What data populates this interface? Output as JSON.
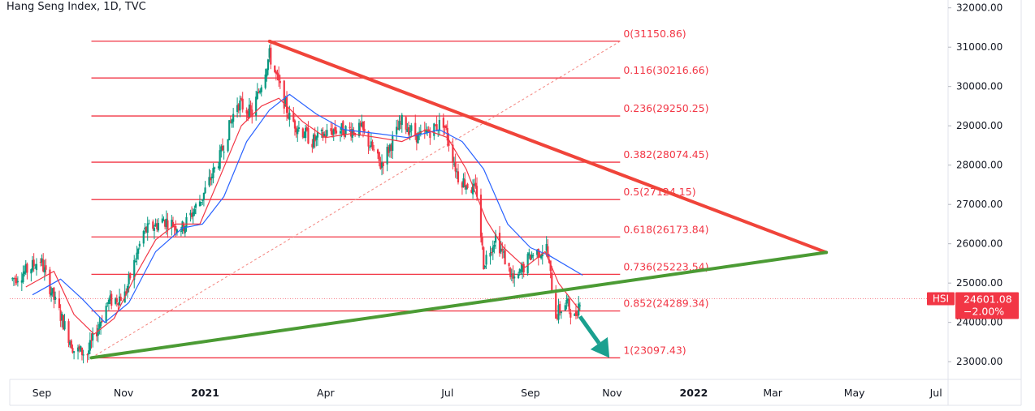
{
  "header": {
    "title": "Hang Seng Index, 1D, TVC"
  },
  "colors": {
    "fib_line": "#f23645",
    "up_candle": "#089981",
    "down_candle": "#f23645",
    "ma_fast": "#f23645",
    "ma_slow": "#2962ff",
    "downtrend_line": "#f0443a",
    "uptrend_line": "#4b9b34",
    "diagonal_dashed": "#f4837d",
    "arrow": "#1aa08f"
  },
  "chart_data": {
    "type": "candlestick",
    "title": "Hang Seng Index, 1D, TVC",
    "ylim": [
      22550,
      32200
    ],
    "y_ticks": [
      "32000.00",
      "31000.00",
      "30000.00",
      "29000.00",
      "28000.00",
      "27000.00",
      "26000.00",
      "25000.00",
      "24000.00",
      "23000.00"
    ],
    "y_tick_values": [
      32000,
      31000,
      30000,
      29000,
      28000,
      27000,
      26000,
      25000,
      24000,
      23000
    ],
    "x_ticks": [
      "Sep",
      "Nov",
      "2021",
      "Apr",
      "Jul",
      "Sep",
      "Nov",
      "2022",
      "Mar",
      "May",
      "Jul"
    ],
    "x_tick_dates": [
      "2020-09-01",
      "2020-11-01",
      "2021-01-01",
      "2021-04-01",
      "2021-07-01",
      "2021-09-01",
      "2021-11-01",
      "2022-01-01",
      "2022-03-01",
      "2022-05-01",
      "2022-07-01"
    ],
    "x_range": [
      "2020-08-08",
      "2022-07-10"
    ],
    "last_price": {
      "symbol": "HSI",
      "value": "24601.08",
      "change": "−2.00%",
      "price": 24601.08
    },
    "fib_retracement": {
      "start_date": "2020-10-08",
      "end_date": "2021-11-07",
      "levels": [
        {
          "label": "0(31150.86)",
          "price": 31150.86
        },
        {
          "label": "0.116(30216.66)",
          "price": 30216.66
        },
        {
          "label": "0.236(29250.25)",
          "price": 29250.25
        },
        {
          "label": "0.382(28074.45)",
          "price": 28074.45
        },
        {
          "label": "0.5(27124.15)",
          "price": 27124.15
        },
        {
          "label": "0.618(26173.84)",
          "price": 26173.84
        },
        {
          "label": "0.736(25223.54)",
          "price": 25223.54
        },
        {
          "label": "0.852(24289.34)",
          "price": 24289.34
        },
        {
          "label": "1(23097.43)",
          "price": 23097.43
        }
      ]
    },
    "trendlines": [
      {
        "name": "downtrend",
        "points": [
          [
            "2021-02-18",
            31150
          ],
          [
            "2022-04-10",
            25780
          ]
        ],
        "style": "solid"
      },
      {
        "name": "uptrend",
        "points": [
          [
            "2020-10-08",
            23100
          ],
          [
            "2022-04-10",
            25780
          ]
        ],
        "style": "solid"
      },
      {
        "name": "diagonal",
        "points": [
          [
            "2020-10-08",
            23100
          ],
          [
            "2021-11-07",
            31150
          ]
        ],
        "style": "dashed"
      }
    ],
    "arrow": {
      "from": [
        "2021-10-08",
        24150
      ],
      "to": [
        "2021-10-30",
        23100
      ]
    },
    "price_path": [
      [
        "2020-08-10",
        25100
      ],
      [
        "2020-08-20",
        25300
      ],
      [
        "2020-08-31",
        25600
      ],
      [
        "2020-09-10",
        24600
      ],
      [
        "2020-09-25",
        23300
      ],
      [
        "2020-10-05",
        23200
      ],
      [
        "2020-10-20",
        24500
      ],
      [
        "2020-11-02",
        24700
      ],
      [
        "2020-11-16",
        26300
      ],
      [
        "2020-12-01",
        26600
      ],
      [
        "2020-12-15",
        26400
      ],
      [
        "2020-12-30",
        27200
      ],
      [
        "2021-01-12",
        28200
      ],
      [
        "2021-01-25",
        29600
      ],
      [
        "2021-02-05",
        29300
      ],
      [
        "2021-02-18",
        30800
      ],
      [
        "2021-03-05",
        29200
      ],
      [
        "2021-03-22",
        28600
      ],
      [
        "2021-04-07",
        28900
      ],
      [
        "2021-04-28",
        28900
      ],
      [
        "2021-05-12",
        28000
      ],
      [
        "2021-05-28",
        29100
      ],
      [
        "2021-06-10",
        28700
      ],
      [
        "2021-06-28",
        29100
      ],
      [
        "2021-07-09",
        27700
      ],
      [
        "2021-07-23",
        27300
      ],
      [
        "2021-07-28",
        25500
      ],
      [
        "2021-08-06",
        26200
      ],
      [
        "2021-08-20",
        25000
      ],
      [
        "2021-09-01",
        25700
      ],
      [
        "2021-09-13",
        25900
      ],
      [
        "2021-09-20",
        24200
      ],
      [
        "2021-09-28",
        24500
      ],
      [
        "2021-10-04",
        24100
      ],
      [
        "2021-10-08",
        24601
      ]
    ],
    "ma_fast_path": [
      [
        "2020-08-20",
        24900
      ],
      [
        "2020-09-10",
        25300
      ],
      [
        "2020-09-25",
        24200
      ],
      [
        "2020-10-10",
        23700
      ],
      [
        "2020-10-25",
        24100
      ],
      [
        "2020-11-10",
        25200
      ],
      [
        "2020-11-25",
        26100
      ],
      [
        "2020-12-10",
        26500
      ],
      [
        "2020-12-28",
        26500
      ],
      [
        "2021-01-12",
        27700
      ],
      [
        "2021-01-28",
        29000
      ],
      [
        "2021-02-12",
        29500
      ],
      [
        "2021-02-25",
        29700
      ],
      [
        "2021-03-15",
        29100
      ],
      [
        "2021-04-01",
        28700
      ],
      [
        "2021-04-20",
        28800
      ],
      [
        "2021-05-10",
        28700
      ],
      [
        "2021-05-28",
        28600
      ],
      [
        "2021-06-15",
        28900
      ],
      [
        "2021-07-01",
        28700
      ],
      [
        "2021-07-15",
        27900
      ],
      [
        "2021-07-30",
        26600
      ],
      [
        "2021-08-12",
        25900
      ],
      [
        "2021-08-28",
        25400
      ],
      [
        "2021-09-12",
        25800
      ],
      [
        "2021-09-22",
        25000
      ],
      [
        "2021-10-08",
        24300
      ]
    ],
    "ma_slow_path": [
      [
        "2020-08-25",
        24700
      ],
      [
        "2020-09-15",
        25100
      ],
      [
        "2020-10-01",
        24600
      ],
      [
        "2020-10-18",
        24000
      ],
      [
        "2020-11-05",
        24500
      ],
      [
        "2020-11-25",
        25800
      ],
      [
        "2020-12-15",
        26400
      ],
      [
        "2020-12-30",
        26500
      ],
      [
        "2021-01-15",
        27200
      ],
      [
        "2021-02-01",
        28600
      ],
      [
        "2021-02-18",
        29400
      ],
      [
        "2021-03-05",
        29800
      ],
      [
        "2021-03-25",
        29300
      ],
      [
        "2021-04-15",
        28900
      ],
      [
        "2021-05-10",
        28800
      ],
      [
        "2021-06-01",
        28700
      ],
      [
        "2021-06-25",
        28900
      ],
      [
        "2021-07-12",
        28600
      ],
      [
        "2021-07-28",
        27900
      ],
      [
        "2021-08-15",
        26500
      ],
      [
        "2021-09-01",
        25900
      ],
      [
        "2021-09-15",
        25700
      ],
      [
        "2021-10-10",
        25200
      ]
    ]
  }
}
